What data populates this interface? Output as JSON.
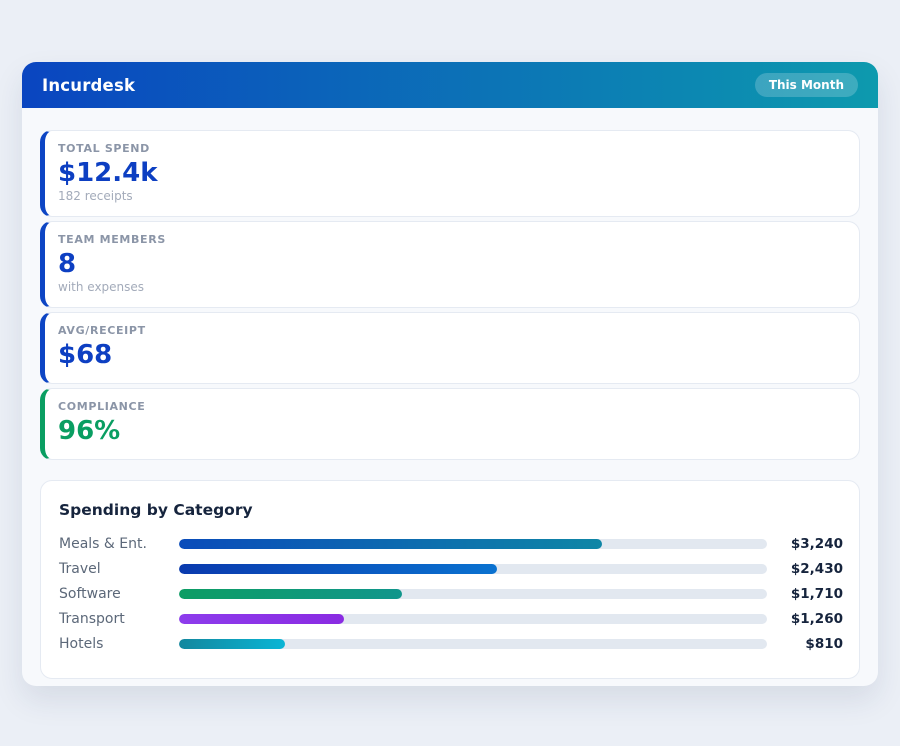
{
  "page": {
    "background": "#ebeff6"
  },
  "header": {
    "title": "Incurdesk",
    "badge": "This Month",
    "gradient_from": "#0a45c0",
    "gradient_to": "#0d9aae"
  },
  "stats": [
    {
      "label": "TOTAL SPEND",
      "value": "$12.4k",
      "sub": "182 receipts",
      "accent": "#0d45c4",
      "value_color": "#0d3fc2"
    },
    {
      "label": "TEAM MEMBERS",
      "value": "8",
      "sub": "with expenses",
      "accent": "#0d45c4",
      "value_color": "#0d3fc2"
    },
    {
      "label": "AVG/RECEIPT",
      "value": "$68",
      "sub": "",
      "accent": "#0d45c4",
      "value_color": "#0d3fc2"
    },
    {
      "label": "COMPLIANCE",
      "value": "96%",
      "sub": "",
      "accent": "#0a9e62",
      "value_color": "#0a9e62"
    }
  ],
  "chart_data": {
    "type": "bar",
    "orientation": "horizontal",
    "title": "Spending by Category",
    "categories": [
      "Meals & Ent.",
      "Travel",
      "Software",
      "Transport",
      "Hotels"
    ],
    "values": [
      3240,
      2430,
      1710,
      1260,
      810
    ],
    "value_labels": [
      "$3,240",
      "$2,430",
      "$1,710",
      "$1,260",
      "$810"
    ],
    "scale_max": 4500,
    "track_color": "#e2e8f0",
    "bar_gradients": [
      [
        "#0a4cba",
        "#0f86a6"
      ],
      [
        "#0a3aae",
        "#0a72d0"
      ],
      [
        "#0d9d64",
        "#11968c"
      ],
      [
        "#8d3cec",
        "#8a2be2"
      ],
      [
        "#13879e",
        "#0ab5d5"
      ]
    ]
  }
}
